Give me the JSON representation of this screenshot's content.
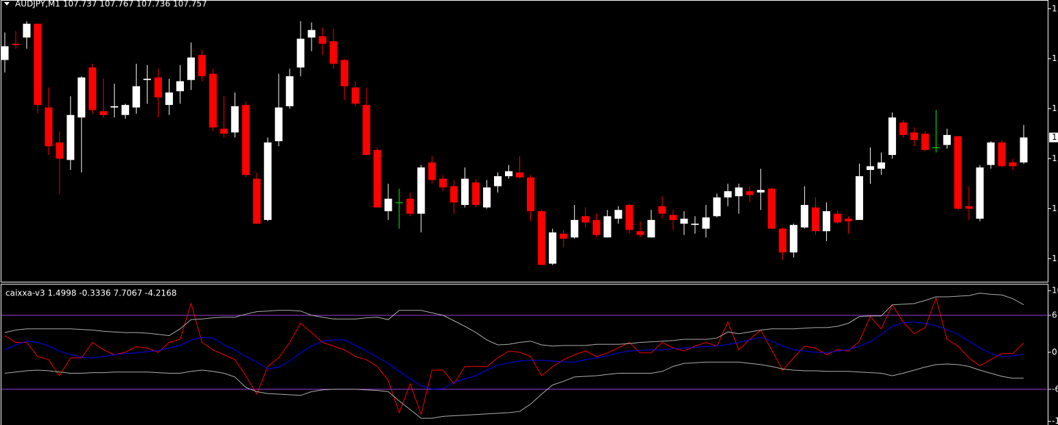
{
  "chart_data": [
    {
      "type": "candlestick",
      "title": "AUDJPY,M1  107.737 107.767 107.736 107.757",
      "up_color": "#ffffff",
      "down_color": "#ff0000",
      "doji_color": "#00ff00",
      "ylim": [
        107.641,
        107.867
      ],
      "yticks": [
        {
          "value": 107.86,
          "label": "1"
        },
        {
          "value": 107.82,
          "label": "1"
        },
        {
          "value": 107.78,
          "label": "1"
        },
        {
          "value": 107.74,
          "label": "1"
        },
        {
          "value": 107.7,
          "label": "1"
        },
        {
          "value": 107.66,
          "label": "1"
        }
      ],
      "price_marker": {
        "value": 107.757,
        "label": "1"
      },
      "open": [
        107.819,
        107.832,
        107.837,
        107.848,
        107.781,
        107.753,
        107.739,
        107.773,
        107.813,
        107.778,
        107.781,
        107.775,
        107.781,
        107.803,
        107.805,
        107.783,
        107.794,
        107.803,
        107.823,
        107.808,
        107.764,
        107.761,
        107.783,
        107.724,
        107.691,
        107.754,
        107.782,
        107.813,
        107.837,
        107.838,
        107.834,
        107.819,
        107.797,
        107.783,
        107.747,
        107.698,
        107.705,
        107.708,
        107.696,
        107.737,
        107.724,
        107.718,
        107.703,
        107.721,
        107.701,
        107.718,
        107.726,
        107.729,
        107.725,
        107.698,
        107.656,
        107.68,
        107.677,
        107.694,
        107.691,
        107.677,
        107.692,
        107.703,
        107.682,
        107.677,
        107.702,
        107.695,
        107.688,
        107.687,
        107.684,
        107.694,
        107.709,
        107.71,
        107.714,
        107.713,
        107.716,
        107.684,
        107.665,
        107.685,
        107.701,
        107.682,
        107.696,
        107.692,
        107.691,
        107.731,
        107.732,
        107.743,
        107.769,
        107.761,
        107.76,
        107.749,
        107.751,
        107.758,
        107.702,
        107.692,
        107.735,
        107.753,
        107.737,
        107.737
      ],
      "high": [
        107.841,
        107.842,
        107.85,
        107.848,
        107.797,
        107.762,
        107.79,
        107.806,
        107.816,
        107.804,
        107.8,
        107.784,
        107.816,
        107.815,
        107.812,
        107.804,
        107.815,
        107.833,
        107.827,
        107.812,
        107.79,
        107.793,
        107.786,
        107.729,
        107.757,
        107.808,
        107.812,
        107.85,
        107.849,
        107.845,
        107.844,
        107.82,
        107.802,
        107.797,
        107.749,
        107.72,
        107.716,
        107.713,
        107.735,
        107.742,
        107.727,
        107.723,
        107.733,
        107.724,
        107.723,
        107.729,
        107.735,
        107.742,
        107.727,
        107.699,
        107.684,
        107.683,
        107.703,
        107.701,
        107.696,
        107.699,
        107.702,
        107.704,
        107.69,
        107.699,
        107.71,
        107.699,
        107.698,
        107.694,
        107.703,
        107.712,
        107.72,
        107.72,
        107.718,
        107.732,
        107.717,
        107.685,
        107.688,
        107.718,
        107.709,
        107.705,
        107.699,
        107.694,
        107.736,
        107.749,
        107.745,
        107.777,
        107.771,
        107.765,
        107.762,
        107.779,
        107.764,
        107.758,
        107.718,
        107.735,
        107.754,
        107.755,
        107.74,
        107.767
      ],
      "low": [
        107.809,
        107.828,
        107.828,
        107.776,
        107.743,
        107.712,
        107.731,
        107.729,
        107.776,
        107.773,
        107.773,
        107.772,
        107.776,
        107.784,
        107.773,
        107.775,
        107.784,
        107.795,
        107.802,
        107.762,
        107.757,
        107.757,
        107.725,
        107.688,
        107.69,
        107.75,
        107.78,
        107.806,
        107.826,
        107.823,
        107.812,
        107.787,
        107.782,
        107.743,
        107.701,
        107.691,
        107.684,
        107.694,
        107.681,
        107.72,
        107.714,
        107.696,
        107.701,
        107.701,
        107.7,
        107.713,
        107.724,
        107.724,
        107.69,
        107.655,
        107.655,
        107.669,
        107.676,
        107.685,
        107.677,
        107.677,
        107.688,
        107.68,
        107.677,
        107.677,
        107.692,
        107.683,
        107.679,
        107.68,
        107.677,
        107.693,
        107.702,
        107.696,
        107.705,
        107.699,
        107.684,
        107.659,
        107.661,
        107.684,
        107.679,
        107.674,
        107.688,
        107.68,
        107.691,
        107.72,
        107.727,
        107.74,
        107.757,
        107.75,
        107.746,
        107.745,
        107.748,
        107.699,
        107.691,
        107.69,
        107.732,
        107.733,
        107.731,
        107.736
      ],
      "close": [
        107.83,
        107.831,
        107.848,
        107.783,
        107.75,
        107.74,
        107.775,
        107.805,
        107.779,
        107.775,
        107.782,
        107.783,
        107.798,
        107.804,
        107.789,
        107.793,
        107.802,
        107.821,
        107.806,
        107.765,
        107.76,
        107.782,
        107.727,
        107.688,
        107.753,
        107.781,
        107.806,
        107.836,
        107.843,
        107.832,
        107.816,
        107.798,
        107.784,
        107.743,
        107.701,
        107.708,
        107.705,
        107.696,
        107.733,
        107.723,
        107.717,
        107.705,
        107.724,
        107.703,
        107.717,
        107.726,
        107.73,
        107.725,
        107.698,
        107.655,
        107.681,
        107.676,
        107.691,
        107.689,
        107.679,
        107.694,
        107.699,
        107.683,
        107.679,
        107.691,
        107.696,
        107.691,
        107.692,
        107.688,
        107.693,
        107.709,
        107.714,
        107.717,
        107.711,
        107.715,
        107.684,
        107.665,
        107.687,
        107.703,
        107.682,
        107.698,
        107.689,
        107.69,
        107.726,
        107.734,
        107.737,
        107.773,
        107.759,
        107.755,
        107.747,
        107.749,
        107.759,
        107.7,
        107.7,
        107.733,
        107.753,
        107.734,
        107.734,
        107.757
      ]
    },
    {
      "type": "line",
      "title": "caixxa-v3 1.4998 -0.3336 7.7067 -4.2168",
      "ylim": [
        -11.8,
        11
      ],
      "yticks": [
        10,
        6,
        {
          "value": 0,
          "label": "0."
        },
        -6,
        {
          "value": -11.2,
          "label": "-1"
        }
      ],
      "levels": [
        6,
        -6
      ],
      "level_color": "#a040e0",
      "series": [
        {
          "color": "#ff0000",
          "values": [
            2.7,
            1.6,
            1.6,
            -0.7,
            -1.2,
            -3.8,
            -0.9,
            -0.9,
            1.6,
            0.4,
            -0.4,
            0,
            0.9,
            0.7,
            0,
            1.6,
            2.1,
            7.9,
            1.6,
            0.4,
            -0.4,
            -1.2,
            -3.8,
            -6.8,
            -2.3,
            -0.9,
            1.6,
            4.7,
            3.2,
            1.6,
            1.0,
            0.4,
            -0.7,
            -1.2,
            -2.3,
            -4.6,
            -9.8,
            -5.1,
            -10.1,
            -2.9,
            -2.9,
            -5.1,
            -2.3,
            -2.3,
            -2.3,
            -0.9,
            0.2,
            0,
            -0.7,
            -3.8,
            -2.3,
            -1.2,
            -0.4,
            0.2,
            -0.7,
            -0.1,
            0.7,
            1.6,
            -0.1,
            -0.1,
            1.6,
            0.7,
            0.2,
            1.0,
            1.6,
            1.0,
            4.9,
            0.4,
            2.1,
            3.6,
            0.4,
            -2.9,
            -0.9,
            1.0,
            0.7,
            -0.4,
            0.4,
            0.2,
            1.8,
            5.8,
            3.8,
            7.7,
            4.9,
            3.0,
            4.0,
            8.8,
            2.1,
            1.0,
            -0.9,
            -2.2,
            -1.2,
            -0.2,
            -0.2,
            1.4998
          ]
        },
        {
          "color": "#0000ff",
          "values": [
            0.4,
            1.2,
            1.8,
            1.6,
            1.0,
            0.2,
            -0.4,
            -0.8,
            -0.9,
            -0.7,
            -0.4,
            -0.2,
            -0.1,
            0.1,
            0.3,
            0.7,
            1.1,
            2.0,
            2.4,
            2.3,
            1.2,
            0.4,
            -0.7,
            -1.6,
            -2.7,
            -2.4,
            -1.4,
            -0.1,
            1.0,
            1.8,
            2.0,
            2.0,
            1.1,
            0.2,
            -0.8,
            -1.8,
            -3.1,
            -4.3,
            -5.4,
            -6.0,
            -5.9,
            -4.9,
            -4.3,
            -3.8,
            -2.9,
            -2.1,
            -1.7,
            -1.4,
            -1.3,
            -1.3,
            -1.4,
            -1.6,
            -1.6,
            -1.2,
            -0.9,
            -0.6,
            -0.1,
            0.2,
            0.3,
            0.4,
            0.4,
            0.6,
            0.7,
            0.8,
            0.9,
            1.0,
            1.3,
            1.6,
            2.0,
            2.4,
            1.8,
            1.0,
            0.4,
            0.2,
            0,
            -0.1,
            0.2,
            0.4,
            1.0,
            1.7,
            2.9,
            4.2,
            4.8,
            4.9,
            4.7,
            4.3,
            3.7,
            2.9,
            1.8,
            0.7,
            -0.2,
            -0.7,
            -0.6,
            -0.3336
          ]
        },
        {
          "color": "#b0b0b0",
          "values": [
            3.2,
            3.6,
            3.8,
            3.8,
            3.8,
            3.8,
            3.8,
            3.7,
            3.6,
            3.4,
            3.3,
            3.2,
            3.2,
            3.1,
            2.9,
            2.7,
            3.8,
            5.3,
            5.4,
            5.6,
            5.7,
            5.7,
            6.2,
            6.6,
            6.7,
            6.8,
            6.8,
            6.7,
            6.0,
            5.7,
            5.4,
            5.4,
            5.4,
            5.6,
            5.7,
            5.3,
            6.8,
            6.8,
            6.8,
            6.4,
            6.0,
            5.1,
            4.2,
            3.2,
            2.0,
            1.2,
            1.3,
            1.6,
            1.8,
            1.2,
            1.0,
            1.1,
            1.1,
            1.1,
            1.3,
            1.3,
            1.3,
            1.4,
            1.6,
            1.7,
            1.8,
            1.9,
            2.1,
            2.1,
            2.1,
            2.3,
            3.3,
            3.0,
            3.3,
            3.6,
            3.8,
            3.8,
            3.8,
            3.9,
            4.0,
            4.0,
            4.2,
            4.7,
            5.8,
            5.9,
            5.9,
            7.7,
            7.8,
            7.9,
            8.4,
            9.0,
            9.0,
            9.1,
            9.2,
            9.6,
            9.4,
            9.3,
            8.7,
            7.7067
          ]
        },
        {
          "color": "#b0b0b0",
          "values": [
            -3.4,
            -3.2,
            -3.0,
            -2.9,
            -3.0,
            -3.2,
            -3.4,
            -3.4,
            -3.3,
            -3.3,
            -3.2,
            -3.2,
            -3.2,
            -3.2,
            -3.3,
            -3.4,
            -3.4,
            -3.1,
            -2.9,
            -3.1,
            -3.4,
            -4.0,
            -5.7,
            -6.4,
            -6.7,
            -6.8,
            -6.9,
            -7.0,
            -6.4,
            -6.1,
            -6.0,
            -6.0,
            -6.0,
            -6.1,
            -6.2,
            -6.4,
            -7.9,
            -9.3,
            -10.7,
            -10.7,
            -10.4,
            -10.3,
            -10.2,
            -10.1,
            -10.0,
            -9.9,
            -9.8,
            -9.6,
            -8.4,
            -6.8,
            -5.3,
            -4.7,
            -4.0,
            -3.9,
            -3.8,
            -3.6,
            -3.4,
            -3.4,
            -3.4,
            -3.4,
            -3.1,
            -2.3,
            -1.8,
            -1.7,
            -1.6,
            -1.6,
            -1.6,
            -1.6,
            -1.8,
            -2.0,
            -2.3,
            -2.7,
            -2.9,
            -3.0,
            -3.0,
            -3.1,
            -3.1,
            -3.1,
            -3.2,
            -3.3,
            -3.4,
            -3.8,
            -3.4,
            -2.9,
            -2.4,
            -2.0,
            -1.9,
            -2.0,
            -2.3,
            -2.9,
            -3.4,
            -3.9,
            -4.2,
            -4.2168
          ]
        }
      ]
    }
  ]
}
